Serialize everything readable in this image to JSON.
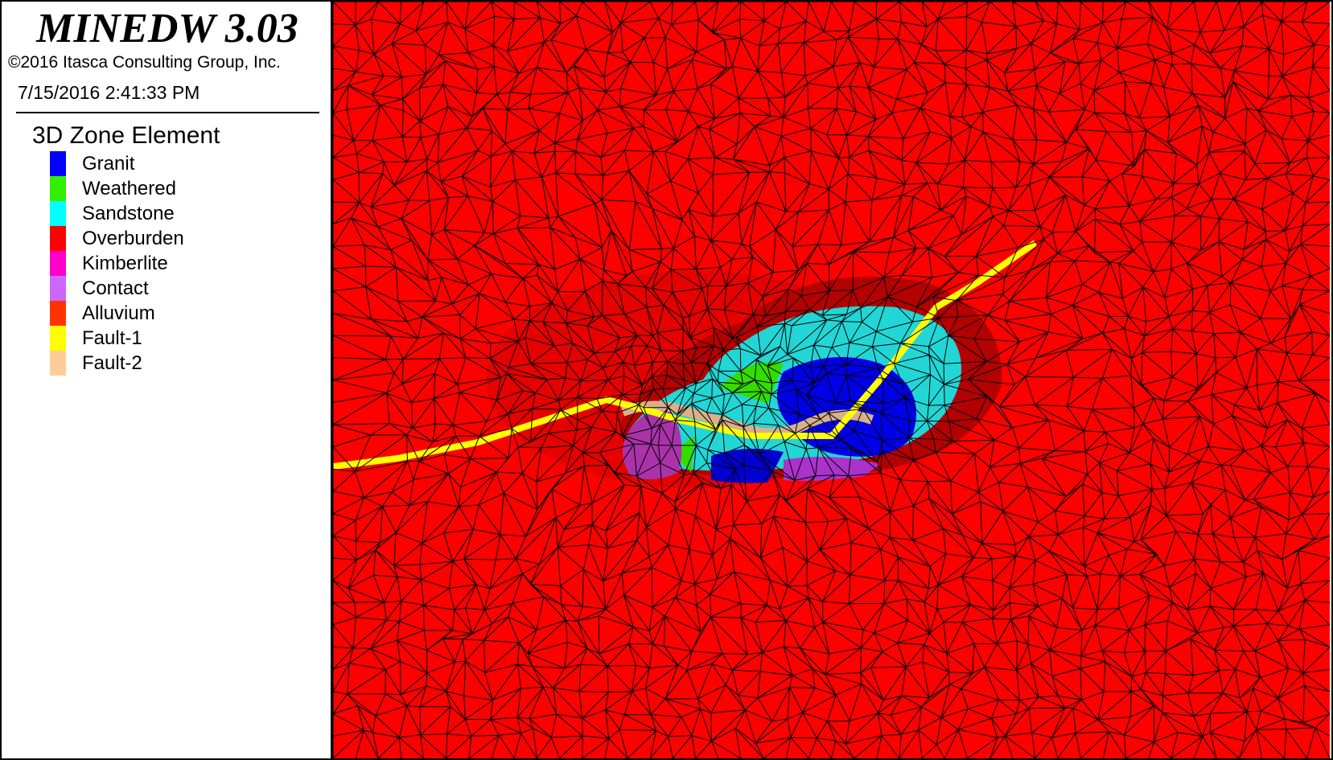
{
  "header": {
    "app_title": "MINEDW 3.03",
    "copyright": "©2016 Itasca Consulting Group, Inc.",
    "timestamp": "7/15/2016 2:41:33 PM"
  },
  "legend": {
    "title": "3D Zone Element",
    "items": [
      {
        "label": "Granit",
        "color": "#0000ff"
      },
      {
        "label": "Weathered",
        "color": "#33ee00"
      },
      {
        "label": "Sandstone",
        "color": "#00ffff"
      },
      {
        "label": "Overburden",
        "color": "#ff0000"
      },
      {
        "label": "Kimberlite",
        "color": "#ff00cc"
      },
      {
        "label": "Contact",
        "color": "#cc66ff"
      },
      {
        "label": "Alluvium",
        "color": "#ff3300"
      },
      {
        "label": "Fault-1",
        "color": "#ffff00"
      },
      {
        "label": "Fault-2",
        "color": "#ffcc99"
      }
    ]
  },
  "viewport": {
    "background_zone": "Overburden",
    "mesh_line_color": "#000000"
  }
}
